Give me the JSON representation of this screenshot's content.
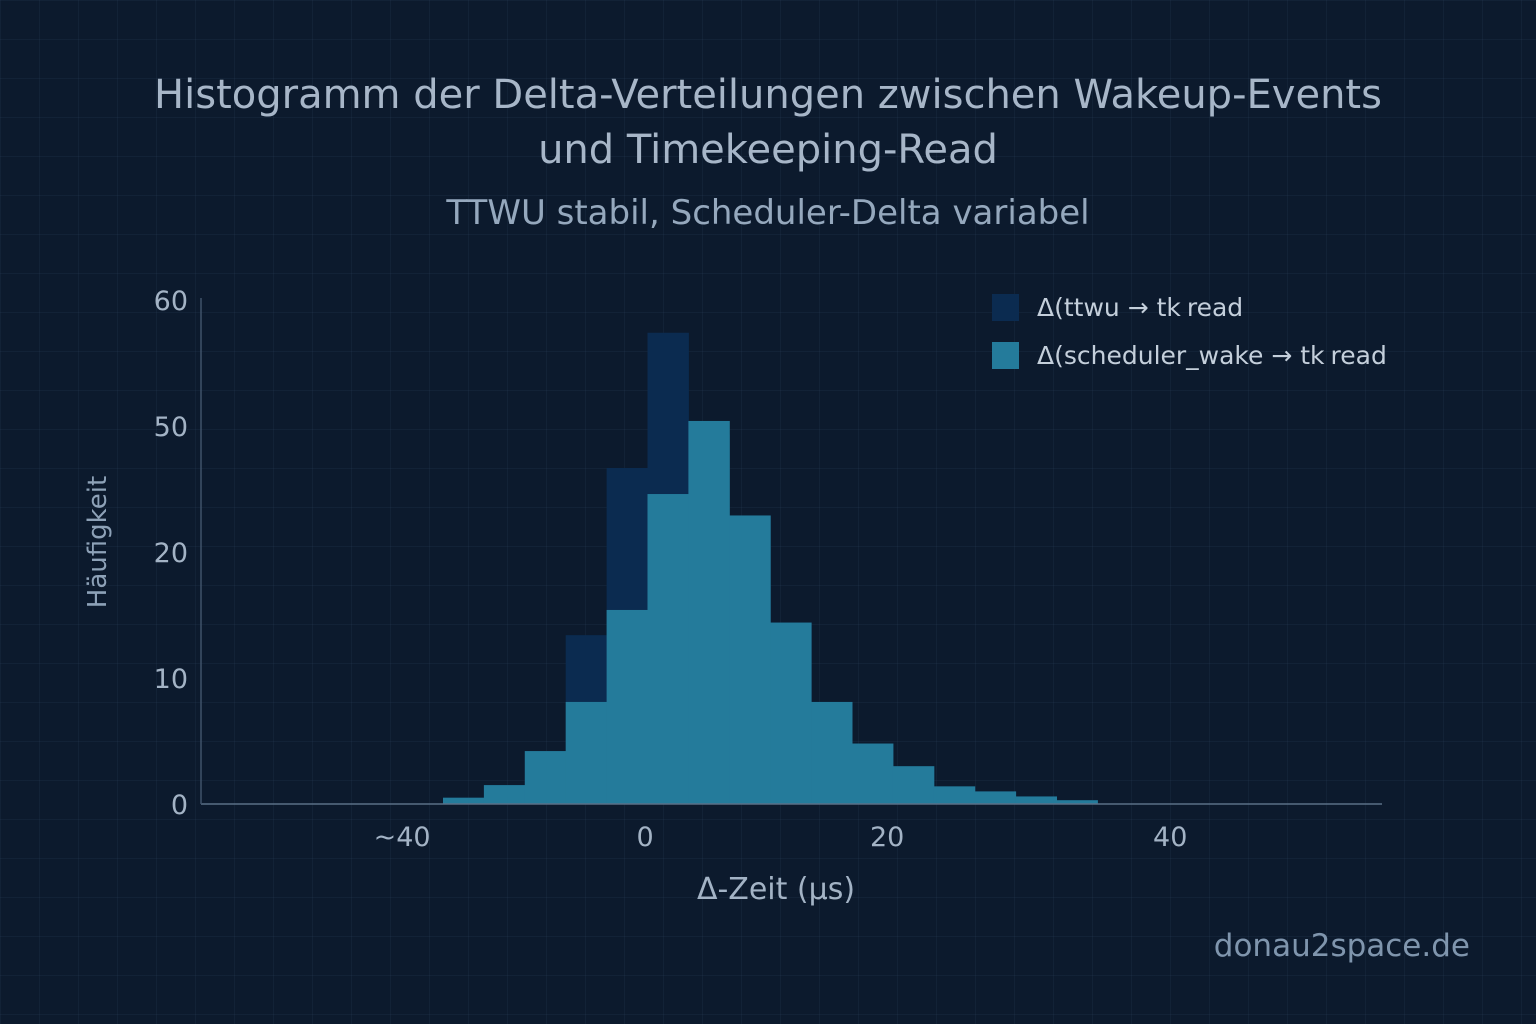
{
  "chart_data": {
    "type": "bar",
    "title": "Histogramm der Delta-Verteilungen zwischen Wakeup-Events und Timekeeping-Read",
    "title_lines": [
      "Histogramm der Delta-Verteilungen zwischen Wakeup-Events",
      "und Timekeeping-Read"
    ],
    "subtitle": "TTWU stabil, Scheduler-Delta variabel",
    "xlabel": "Δ-Zeit (μs)",
    "ylabel": "Häufigkeit",
    "legend_placement": "top-right",
    "y_ticks": [
      {
        "label": "0",
        "value": 0
      },
      {
        "label": "10",
        "value": 10
      },
      {
        "label": "20",
        "value": 20
      },
      {
        "label": "50",
        "value": 50
      },
      {
        "label": "60",
        "value": 60
      }
    ],
    "x_ticks_note": "x positions given in bin-index units",
    "x_range_bins": [
      -5.9,
      23
    ],
    "x_ticks": [
      {
        "label": "~40",
        "pos": -1
      },
      {
        "label": "0",
        "pos": 4.94
      },
      {
        "label": "20",
        "pos": 10.86
      },
      {
        "label": "40",
        "pos": 17.78
      }
    ],
    "series": [
      {
        "name": "ttwu",
        "legend_prefix": "Δ(ttwu → tk",
        "legend_sub": "read",
        "color": "#0b2b50",
        "values": [
          0.5,
          1.5,
          4.2,
          13.4,
          40,
          57.4,
          48,
          28.7,
          14.4,
          8.1,
          4.8,
          3.0,
          1.4,
          1.0,
          0.6,
          0.3
        ]
      },
      {
        "name": "scheduler_wake",
        "legend_prefix": "Δ(scheduler_wake → tk",
        "legend_sub": "read",
        "color": "#247b9b",
        "values": [
          0.5,
          1.5,
          4.2,
          8.1,
          15.4,
          33.8,
          50.4,
          28.7,
          14.4,
          8.1,
          4.8,
          3.0,
          1.4,
          1.0,
          0.6,
          0.3
        ]
      }
    ]
  },
  "watermark": "donau2space.de",
  "colors": {
    "background": "#0c1a2d",
    "axis": "#5a6f87"
  }
}
